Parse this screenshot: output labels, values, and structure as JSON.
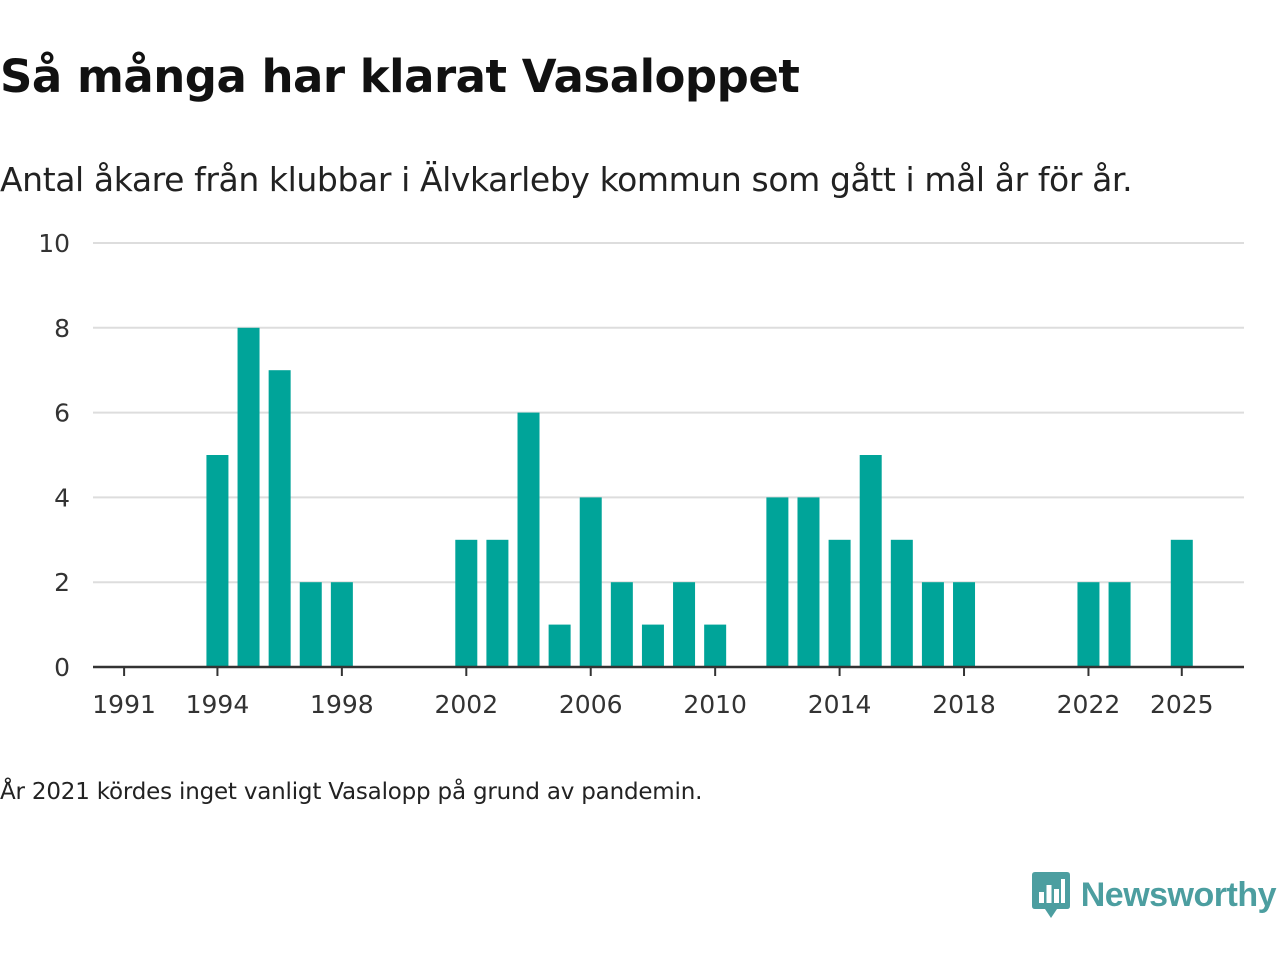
{
  "chart_data": {
    "type": "bar",
    "title": "Så många har klarat Vasaloppet",
    "subtitle": "Antal åkare från klubbar i Älvkarleby kommun som gått i mål år för år.",
    "x": [
      1991,
      1992,
      1993,
      1994,
      1995,
      1996,
      1997,
      1998,
      1999,
      2000,
      2001,
      2002,
      2003,
      2004,
      2005,
      2006,
      2007,
      2008,
      2009,
      2010,
      2011,
      2012,
      2013,
      2014,
      2015,
      2016,
      2017,
      2018,
      2019,
      2020,
      2022,
      2023,
      2024,
      2025
    ],
    "values": [
      0,
      0,
      0,
      5,
      8,
      7,
      2,
      2,
      0,
      0,
      0,
      3,
      3,
      6,
      1,
      4,
      2,
      1,
      2,
      1,
      0,
      4,
      4,
      3,
      5,
      3,
      2,
      2,
      0,
      0,
      2,
      2,
      0,
      3
    ],
    "x_tick_labels": [
      "1991",
      "1994",
      "1998",
      "2002",
      "2006",
      "2010",
      "2014",
      "2018",
      "2022",
      "2025"
    ],
    "y_ticks": [
      0,
      2,
      4,
      6,
      8,
      10
    ],
    "ylim": [
      0,
      10
    ],
    "xlabel": "",
    "ylabel": "",
    "grid": true,
    "bar_color": "#00a499",
    "gridline_color": "#dddddd",
    "axis_color": "#333333"
  },
  "footnote": "År 2021 kördes inget vanligt Vasalopp på grund av pandemin.",
  "brand": {
    "name": "Newsworthy",
    "icon": "newsworthy-logo-icon",
    "color": "#4c9ea0"
  }
}
